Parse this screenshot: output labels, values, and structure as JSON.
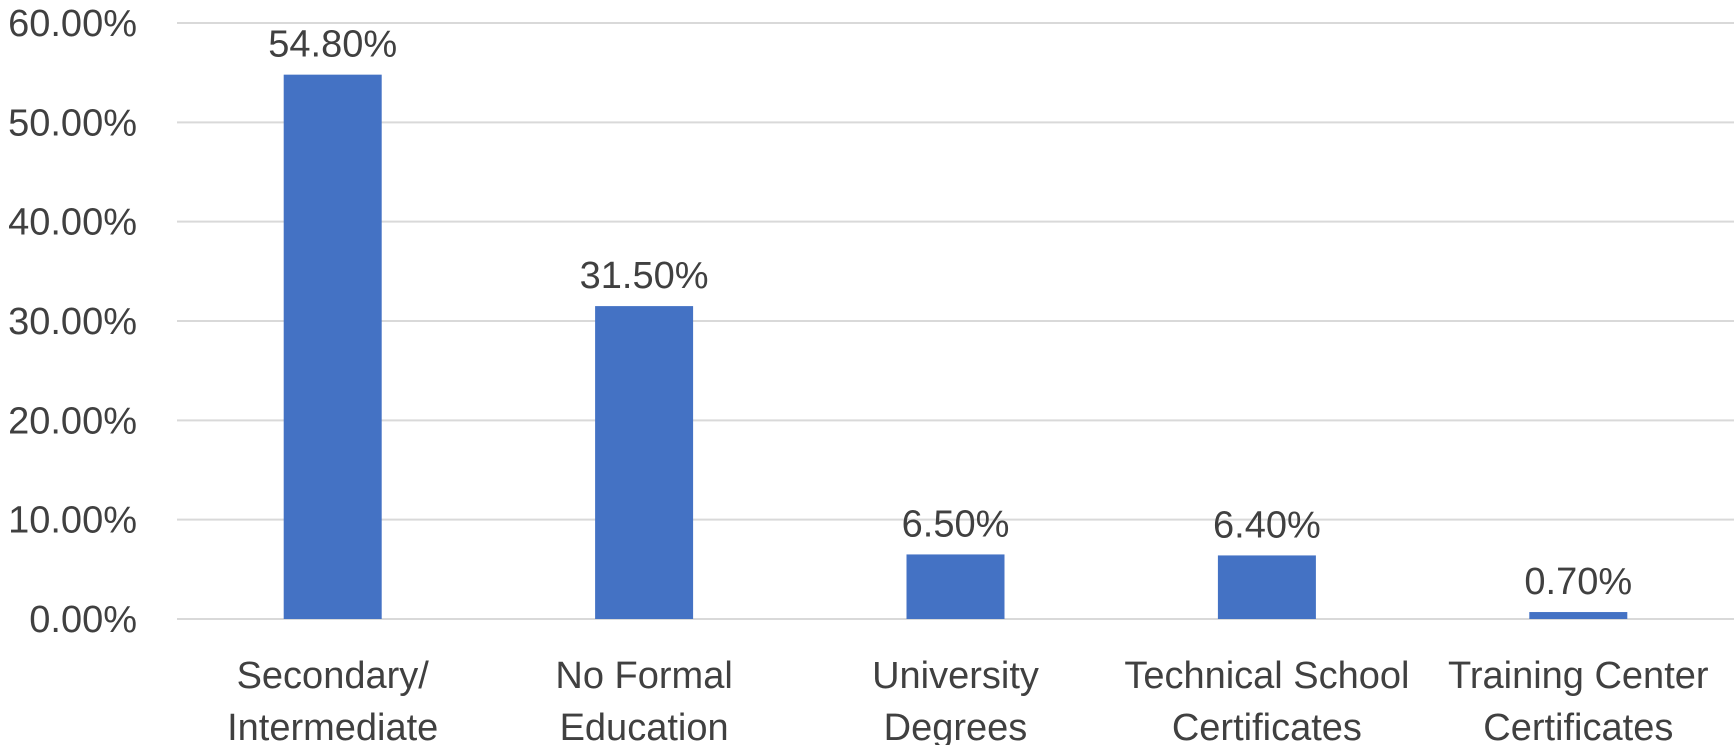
{
  "chart_data": {
    "type": "bar",
    "title": "",
    "xlabel": "",
    "ylabel": "",
    "categories": [
      [
        "Secondary/",
        "Intermediate"
      ],
      [
        "No Formal",
        "Education"
      ],
      [
        "University",
        "Degrees"
      ],
      [
        "Technical School",
        "Certificates"
      ],
      [
        "Training Center",
        "Certificates"
      ]
    ],
    "values": [
      54.8,
      31.5,
      6.5,
      6.4,
      0.7
    ],
    "data_labels": [
      "54.80%",
      "31.50%",
      "6.50%",
      "6.40%",
      "0.70%"
    ],
    "ylim": [
      0,
      60
    ],
    "yticks": [
      0,
      10,
      20,
      30,
      40,
      50,
      60
    ],
    "ytick_labels": [
      "0.00%",
      "10.00%",
      "20.00%",
      "30.00%",
      "40.00%",
      "50.00%",
      "60.00%"
    ],
    "grid": true,
    "legend": "none",
    "bar_color": "#4472c4"
  }
}
